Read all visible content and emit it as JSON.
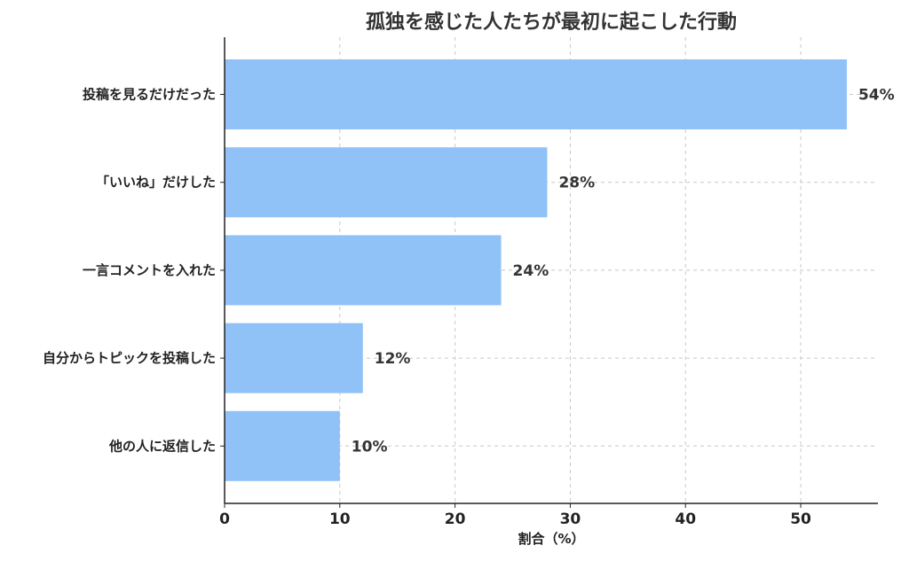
{
  "chart_data": {
    "type": "bar",
    "orientation": "horizontal",
    "title": "孤独を感じた人たちが最初に起こした行動",
    "xlabel": "割合（%）",
    "ylabel": "",
    "categories": [
      "投稿を見るだけだった",
      "「いいね」だけした",
      "一言コメントを入れた",
      "自分からトピックを投稿した",
      "他の人に返信した"
    ],
    "values": [
      54,
      28,
      24,
      12,
      10
    ],
    "data_labels": [
      "54%",
      "28%",
      "24%",
      "12%",
      "10%"
    ],
    "xlim": [
      0,
      56.7
    ],
    "xticks": [
      0,
      10,
      20,
      30,
      40,
      50
    ],
    "grid": true,
    "bar_color": "#90c2f8"
  }
}
